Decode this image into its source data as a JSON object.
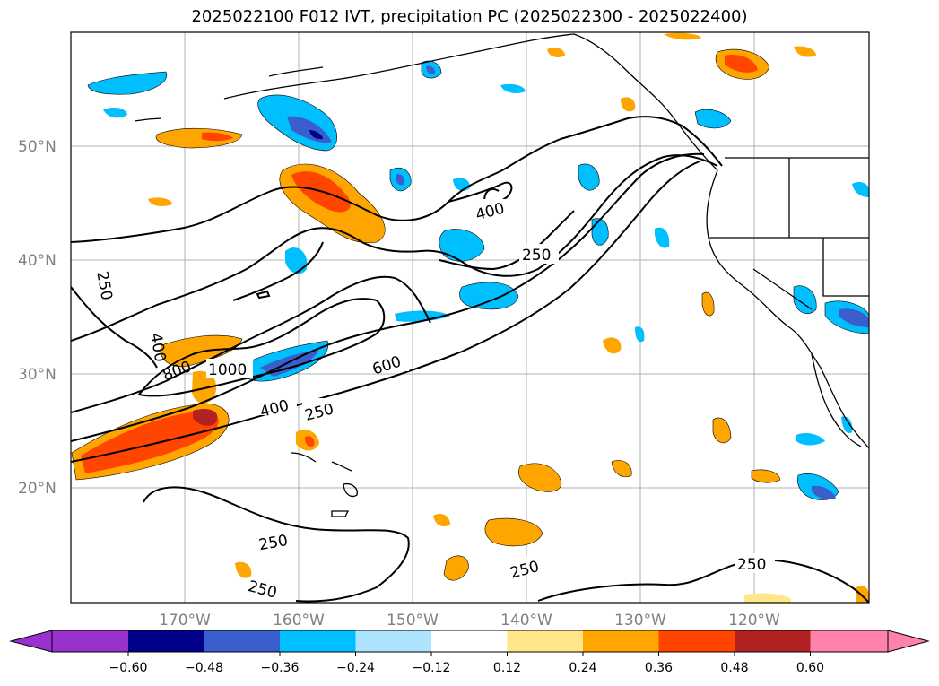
{
  "title": "2025022100 F012 IVT, precipitation PC (2025022300 - 2025022400)",
  "lat_labels": [
    "50°N",
    "40°N",
    "30°N",
    "20°N"
  ],
  "lon_labels": [
    "170°W",
    "160°W",
    "150°W",
    "140°W",
    "130°W",
    "120°W"
  ],
  "contour_labels": [
    "400",
    "250",
    "250",
    "400",
    "800",
    "1000",
    "600",
    "400",
    "250",
    "250",
    "250",
    "250",
    "250"
  ],
  "colorbar": {
    "ticks": [
      "−0.60",
      "−0.48",
      "−0.36",
      "−0.24",
      "−0.12",
      "0.12",
      "0.24",
      "0.36",
      "0.48",
      "0.60"
    ],
    "colors": [
      "#9932cc",
      "#00008b",
      "#3a5fcd",
      "#00bfff",
      "#aee3ff",
      "#ffffff",
      "#ffe68a",
      "#ffa500",
      "#ff4500",
      "#b22222",
      "#ff82ab"
    ]
  },
  "colors": {
    "land_border": "#000000",
    "grid": "#b0b0b0",
    "label_gray": "#808080"
  }
}
